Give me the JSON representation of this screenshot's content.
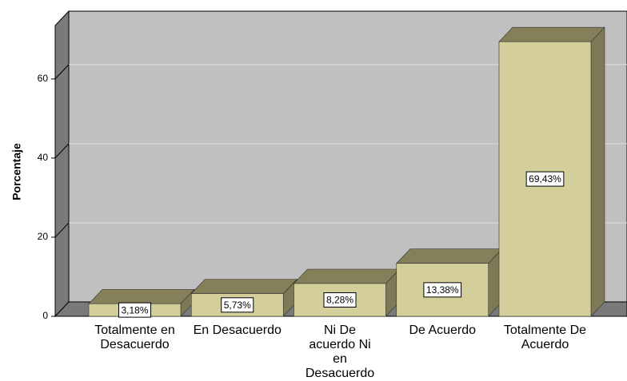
{
  "chart_data": {
    "type": "bar3d",
    "y_label": "Porcentaje",
    "categories": [
      "Totalmente en Desacuerdo",
      "En Desacuerdo",
      "Ni De acuerdo Ni en Desacuerdo",
      "De Acuerdo",
      "Totalmente De Acuerdo"
    ],
    "values": [
      3.18,
      5.73,
      8.28,
      13.38,
      69.43
    ],
    "value_labels": [
      "3,18%",
      "5,73%",
      "8,28%",
      "13,38%",
      "69,43%"
    ],
    "color": "#d3ce9a",
    "ylim": [
      0,
      73.5
    ],
    "yticks": [
      0,
      20,
      40,
      60
    ],
    "grid": true
  }
}
